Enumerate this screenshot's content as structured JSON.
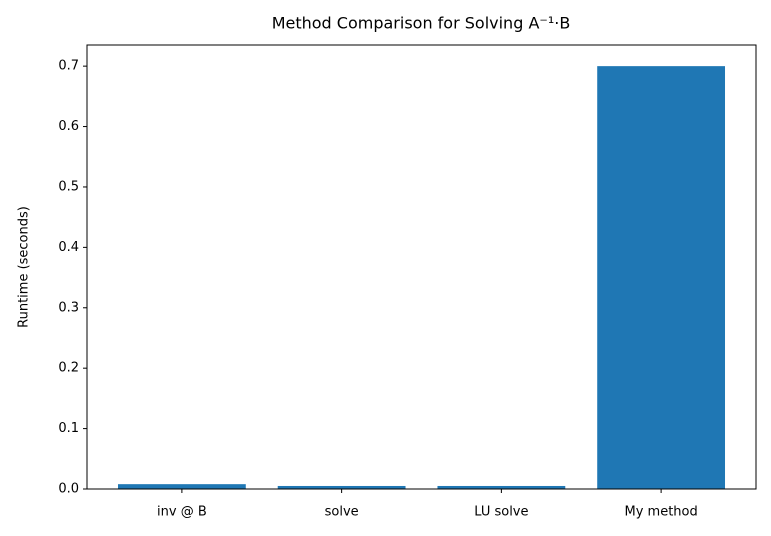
{
  "chart_data": {
    "type": "bar",
    "title": "Method Comparison for Solving A⁻¹·B",
    "y_label": "Runtime (seconds)",
    "categories": [
      "inv @ B",
      "solve",
      "LU solve",
      "My method"
    ],
    "values": [
      0.008,
      0.005,
      0.005,
      0.7
    ],
    "color": "#1f77b4",
    "ylim": [
      0,
      0.735
    ],
    "yticks": [
      {
        "value": 0,
        "label": "0.0"
      },
      0.1,
      0.2,
      0.3,
      0.4,
      0.5,
      0.6,
      0.7
    ],
    "grid": false
  }
}
